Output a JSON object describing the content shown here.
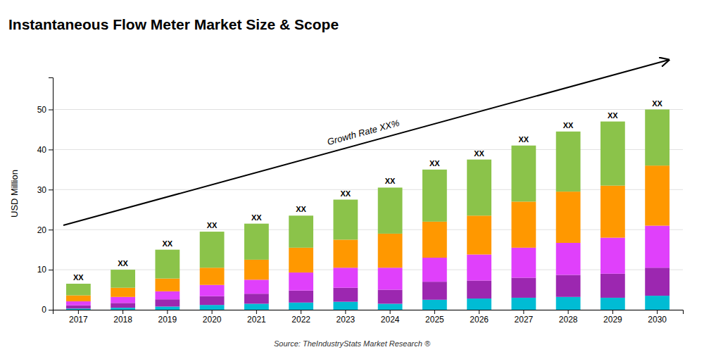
{
  "chart_data": {
    "type": "bar",
    "stacked": true,
    "title": "Instantaneous Flow Meter Market Size & Scope",
    "y_label": "USD Million",
    "source": "Source: TheIndustryStats Market Research ®",
    "annotation": "Growth Rate XX%",
    "categories": [
      "2017",
      "2018",
      "2019",
      "2020",
      "2021",
      "2022",
      "2023",
      "2024",
      "2025",
      "2026",
      "2027",
      "2028",
      "2029",
      "2030"
    ],
    "series": [
      {
        "color": "#00BCD4",
        "values": [
          0.3,
          0.5,
          0.8,
          1.2,
          1.5,
          1.8,
          2.0,
          1.5,
          2.5,
          2.8,
          3.0,
          3.2,
          3.0,
          3.5
        ]
      },
      {
        "color": "#9C27B0",
        "values": [
          0.8,
          1.2,
          1.8,
          2.2,
          2.5,
          3.0,
          3.5,
          3.5,
          4.5,
          4.5,
          5.0,
          5.5,
          6.0,
          7.0
        ]
      },
      {
        "color": "#E040FB",
        "values": [
          1.0,
          1.5,
          2.0,
          2.8,
          3.5,
          4.5,
          5.0,
          5.5,
          6.0,
          6.5,
          7.5,
          8.0,
          9.0,
          10.5
        ]
      },
      {
        "color": "#FF9800",
        "values": [
          1.5,
          2.3,
          3.2,
          4.3,
          5.0,
          6.2,
          7.0,
          8.5,
          9.0,
          9.7,
          11.5,
          12.8,
          13.0,
          15.0
        ]
      },
      {
        "color": "#8BC34A",
        "values": [
          2.9,
          4.5,
          7.2,
          9.0,
          9.0,
          8.0,
          10.0,
          11.5,
          13.0,
          14.0,
          14.0,
          15.0,
          16.0,
          14.0
        ]
      }
    ],
    "totals": [
      6.5,
      10.0,
      15.0,
      19.5,
      21.5,
      23.5,
      27.5,
      30.5,
      35.0,
      37.5,
      41.0,
      44.5,
      47.0,
      50.0
    ],
    "total_labels": [
      "XX",
      "XX",
      "XX",
      "XX",
      "XX",
      "XX",
      "XX",
      "XX",
      "XX",
      "XX",
      "XX",
      "XX",
      "XX",
      "XX"
    ],
    "ylim": [
      0,
      58
    ],
    "yticks": [
      0,
      10,
      20,
      30,
      40,
      50
    ],
    "grid": true
  }
}
